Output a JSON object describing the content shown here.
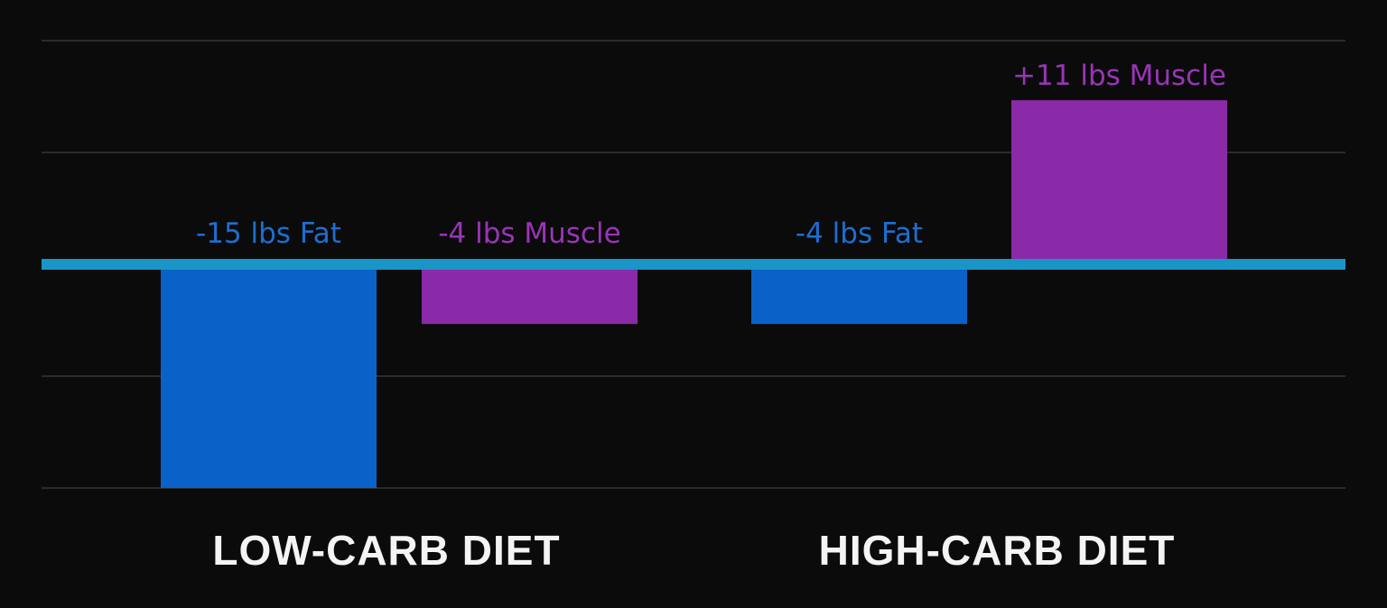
{
  "chart_data": {
    "type": "bar",
    "categories": [
      "LOW-CARB DIET",
      "HIGH-CARB DIET"
    ],
    "bars": [
      {
        "category": "LOW-CARB DIET",
        "kind": "Fat",
        "value": -15,
        "label": "-15 lbs Fat",
        "color": "#0a62c8"
      },
      {
        "category": "LOW-CARB DIET",
        "kind": "Muscle",
        "value": -4,
        "label": "-4 lbs Muscle",
        "color": "#8b2aa8"
      },
      {
        "category": "HIGH-CARB DIET",
        "kind": "Fat",
        "value": -4,
        "label": "-4 lbs Fat",
        "color": "#0a62c8"
      },
      {
        "category": "HIGH-CARB DIET",
        "kind": "Muscle",
        "value": 11,
        "label": "+11 lbs Muscle",
        "color": "#8b2aa8"
      }
    ],
    "title": "",
    "xlabel": "",
    "ylabel": "",
    "ylim": [
      -15,
      15
    ],
    "grid": true,
    "zero_line_color": "#1a95c8",
    "background": "#0b0b0b",
    "legend": "none"
  }
}
